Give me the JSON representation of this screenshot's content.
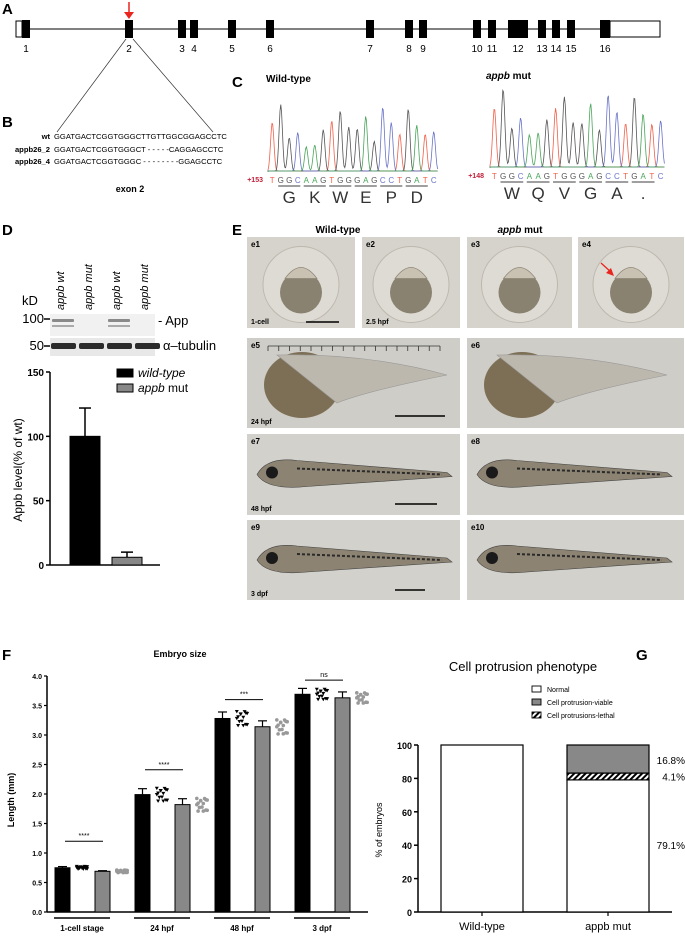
{
  "panels": {
    "A": "A",
    "B": "B",
    "C": "C",
    "D": "D",
    "E": "E",
    "F": "F",
    "G": "G"
  },
  "gene": {
    "exons": [
      "1",
      "2",
      "3",
      "4",
      "5",
      "6",
      "7",
      "8",
      "9",
      "10",
      "11",
      "12",
      "13",
      "14",
      "15",
      "16"
    ],
    "target_exon": "2",
    "arrow_color": "#e8261f"
  },
  "alignment": {
    "rows": [
      {
        "name": "wt",
        "seq": "GGATGACTCGGTGGGCTTGTTGGCGGAGCCTC"
      },
      {
        "name": "appb26_2",
        "seq": "GGATGACTCGGTGGGCT - - - - -CAGGAGCCTC"
      },
      {
        "name": "appb26_4",
        "seq": "GGATGACTCGGTGGGC - - - - - - - -GGAGCCTC"
      }
    ],
    "caption": "exon 2"
  },
  "chromatograms": [
    {
      "title": "Wild-type",
      "title_italic_part": "",
      "position": "+153",
      "bases": "TGGCAAGTGGGAGCCTGATC",
      "aa": [
        "G",
        "K",
        "W",
        "E",
        "P",
        "D"
      ]
    },
    {
      "title": " mut",
      "title_italic_part": "appb",
      "position": "+148",
      "bases": "TGGCAAGTGGGAGCCTGATC",
      "aa": [
        "W",
        "Q",
        "V",
        "G",
        "A",
        "."
      ]
    }
  ],
  "base_colors": {
    "T": "#f0604a",
    "G": "#555555",
    "C": "#6a74c8",
    "A": "#4aa55a"
  },
  "western": {
    "lanes": [
      "appb wt",
      "appb mut",
      "appb wt",
      "appb mut"
    ],
    "unit": "kD",
    "markers": [
      "100",
      "50"
    ],
    "bands": [
      "App",
      "α–tubulin"
    ]
  },
  "chart_data": [
    {
      "type": "bar",
      "panel": "D",
      "categories": [
        "wild-type",
        "appb mut"
      ],
      "values": [
        100,
        6
      ],
      "errors": [
        22,
        4
      ],
      "ylabel": "Appb level(% of wt)",
      "ylim": [
        0,
        150
      ],
      "yticks": [
        "0",
        "50",
        "100",
        "150"
      ],
      "legend": [
        {
          "italic": "wild-type",
          "rest": "",
          "color": "#000000"
        },
        {
          "italic": "appb",
          "rest": " mut",
          "color": "#888888"
        }
      ],
      "legend_position": "top-right"
    },
    {
      "type": "bar",
      "panel": "F",
      "title": "Embryo size",
      "ylabel": "Length (mm)",
      "categories": [
        "1-cell stage",
        "24 hpf",
        "48 hpf",
        "3 dpf"
      ],
      "series": [
        {
          "name": "wild-type",
          "values": [
            0.75,
            1.99,
            3.28,
            3.69
          ],
          "errors": [
            0.02,
            0.1,
            0.11,
            0.1
          ],
          "color": "#000000"
        },
        {
          "name": "appb mut",
          "values": [
            0.69,
            1.82,
            3.14,
            3.63
          ],
          "errors": [
            0.01,
            0.1,
            0.1,
            0.1
          ],
          "color": "#888888"
        }
      ],
      "significance": [
        "****",
        "****",
        "***",
        "ns"
      ],
      "ylim": [
        0,
        4.0
      ],
      "yticks": [
        "0.0",
        "0.5",
        "1.0",
        "1.5",
        "2.0",
        "2.5",
        "3.0",
        "3.5",
        "4.0"
      ]
    },
    {
      "type": "bar",
      "stacked": true,
      "panel": "G",
      "title": "Cell protrusion phenotype",
      "ylabel": "% of embryos",
      "categories": [
        "Wild-type",
        "appb mut"
      ],
      "series": [
        {
          "name": "Normal",
          "values": [
            100,
            79.1
          ],
          "color": "#ffffff"
        },
        {
          "name": "Cell protrusions-lethal",
          "values": [
            0,
            4.1
          ],
          "color": "hatch"
        },
        {
          "name": "Cell protrusion-viable",
          "values": [
            0,
            16.8
          ],
          "color": "#888888"
        }
      ],
      "legend": [
        "Normal",
        "Cell protrusion-viable",
        "Cell protrusions-lethal"
      ],
      "data_labels": [
        "79.1%",
        "4.1%",
        "16.8%"
      ],
      "ylim": [
        0,
        100
      ],
      "yticks": [
        "0",
        "20",
        "40",
        "60",
        "80",
        "100"
      ],
      "legend_position": "top-right"
    }
  ],
  "embryos": {
    "col_titles": [
      {
        "italic": "",
        "rest": "Wild-type"
      },
      {
        "italic": "appb",
        "rest": " mut"
      }
    ],
    "tiles": [
      {
        "id": "e1",
        "stage": "1-cell"
      },
      {
        "id": "e2",
        "stage": "2.5 hpf"
      },
      {
        "id": "e3",
        "stage": ""
      },
      {
        "id": "e4",
        "stage": ""
      },
      {
        "id": "e5",
        "stage": "24 hpf"
      },
      {
        "id": "e6",
        "stage": ""
      },
      {
        "id": "e7",
        "stage": "48 hpf"
      },
      {
        "id": "e8",
        "stage": ""
      },
      {
        "id": "e9",
        "stage": "3 dpf"
      },
      {
        "id": "e10",
        "stage": ""
      }
    ]
  }
}
